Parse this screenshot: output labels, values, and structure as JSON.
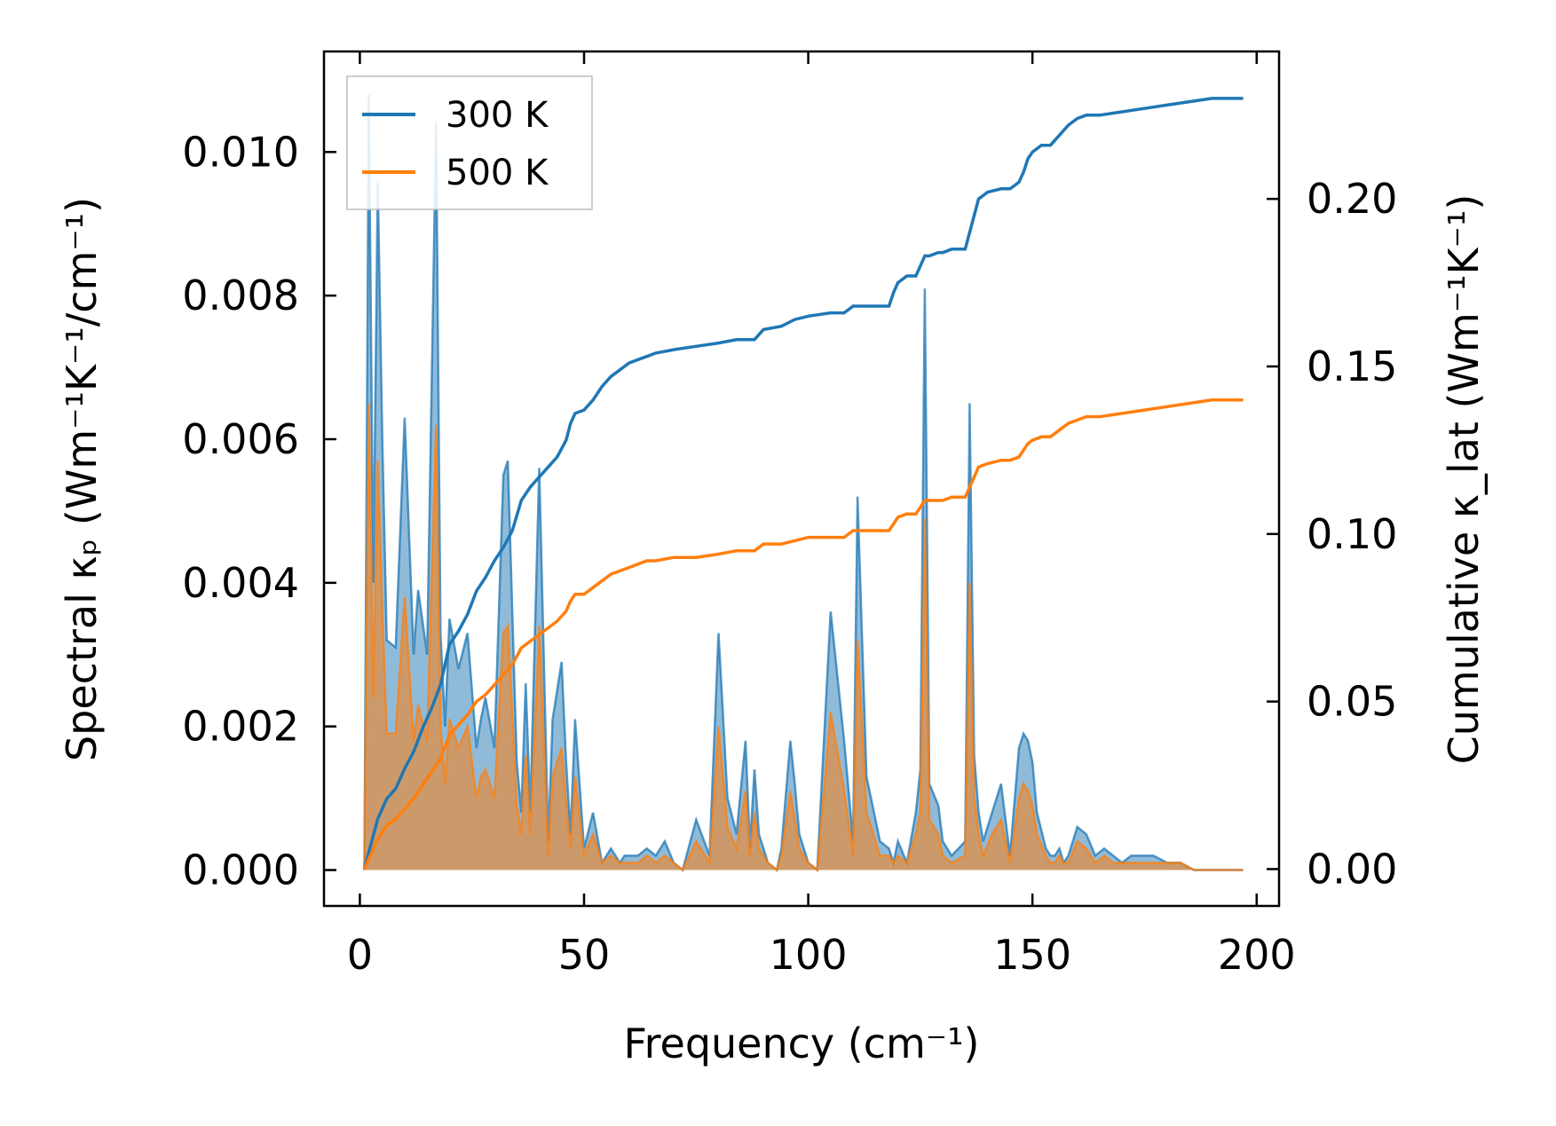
{
  "chart_data": {
    "type": "area+line",
    "xlabel": "Frequency (cm⁻¹)",
    "ylabel_left": "Spectral κₚ (Wm⁻¹K⁻¹/cm⁻¹)",
    "ylabel_right": "Cumulative κ_lat (Wm⁻¹K⁻¹)",
    "xlim": [
      -8,
      205
    ],
    "ylim_left": [
      -0.0005,
      0.0114
    ],
    "ylim_right": [
      -0.011,
      0.244
    ],
    "x_ticks": [
      0,
      50,
      100,
      150,
      200
    ],
    "x_tick_labels": [
      "0",
      "50",
      "100",
      "150",
      "200"
    ],
    "y_left_ticks": [
      0.0,
      0.002,
      0.004,
      0.006,
      0.008,
      0.01
    ],
    "y_left_tick_labels": [
      "0.000",
      "0.002",
      "0.004",
      "0.006",
      "0.008",
      "0.010"
    ],
    "y_right_ticks": [
      0.0,
      0.05,
      0.1,
      0.15,
      0.2
    ],
    "y_right_tick_labels": [
      "0.00",
      "0.05",
      "0.10",
      "0.15",
      "0.20"
    ],
    "legend": {
      "position": "top-left",
      "entries": [
        {
          "label": "300 K",
          "color": "#1f77b4"
        },
        {
          "label": "500 K",
          "color": "#ff7f0e"
        }
      ]
    },
    "spectral_x": [
      1,
      2,
      3,
      4,
      5,
      6,
      8,
      10,
      12,
      13,
      15,
      17,
      18,
      19,
      20,
      22,
      24,
      26,
      27,
      28,
      30,
      32,
      33,
      35,
      36,
      37,
      38,
      40,
      42,
      43,
      45,
      46,
      47,
      48,
      50,
      52,
      54,
      56,
      58,
      59,
      60,
      62,
      64,
      66,
      68,
      70,
      72,
      75,
      78,
      80,
      82,
      84,
      86,
      87,
      88,
      89,
      90,
      91,
      93,
      94,
      96,
      97,
      98,
      100,
      102,
      105,
      108,
      110,
      111,
      113,
      116,
      118,
      119,
      120,
      122,
      124,
      125,
      126,
      127,
      129,
      130,
      132,
      135,
      136,
      137,
      138,
      139,
      141,
      143,
      145,
      147,
      148,
      149,
      150,
      151,
      153,
      154,
      155,
      156,
      157,
      158,
      160,
      162,
      164,
      166,
      168,
      170,
      172,
      173,
      175,
      177,
      180,
      183,
      186,
      190,
      195,
      197
    ],
    "series": [
      {
        "name": "300 K",
        "color": "#1f77b4",
        "spectral": [
          0.0,
          0.0108,
          0.004,
          0.0096,
          0.006,
          0.0032,
          0.0031,
          0.0063,
          0.003,
          0.0039,
          0.003,
          0.0104,
          0.0033,
          0.002,
          0.0035,
          0.0028,
          0.0033,
          0.0017,
          0.0021,
          0.0024,
          0.0017,
          0.0055,
          0.0057,
          0.0015,
          0.0008,
          0.0026,
          0.0008,
          0.0056,
          0.0004,
          0.0021,
          0.0029,
          0.0015,
          0.0005,
          0.0021,
          0.0003,
          0.0008,
          0.0001,
          0.0003,
          0.0001,
          0.0002,
          0.0002,
          0.0002,
          0.0003,
          0.0002,
          0.0004,
          0.0001,
          0.0,
          0.0007,
          0.0002,
          0.0033,
          0.001,
          0.0005,
          0.0018,
          0.0003,
          0.0014,
          0.0005,
          0.0003,
          0.0001,
          0.0,
          0.0003,
          0.0018,
          0.0012,
          0.0005,
          0.0001,
          0.0,
          0.0036,
          0.0018,
          0.0004,
          0.0052,
          0.0013,
          0.0004,
          0.0003,
          0.0001,
          0.0004,
          0.0001,
          0.0008,
          0.0014,
          0.0081,
          0.0012,
          0.0009,
          0.0004,
          0.0002,
          0.0004,
          0.0065,
          0.0016,
          0.0008,
          0.0004,
          0.0008,
          0.0012,
          0.0002,
          0.0017,
          0.0019,
          0.0018,
          0.0015,
          0.0008,
          0.0003,
          0.0002,
          0.0002,
          0.0003,
          0.0001,
          0.0002,
          0.0006,
          0.0005,
          0.0002,
          0.0003,
          0.0002,
          0.0001,
          0.0002,
          0.0002,
          0.0002,
          0.0002,
          0.0001,
          0.0001,
          0.0,
          0.0,
          0.0,
          0.0
        ],
        "cumulative_x": [
          1,
          2,
          3,
          4,
          5,
          6,
          8,
          10,
          12,
          14,
          16,
          18,
          20,
          22,
          24,
          26,
          28,
          30,
          32,
          34,
          36,
          38,
          40,
          42,
          44,
          46,
          47,
          48,
          50,
          52,
          54,
          56,
          58,
          60,
          62,
          64,
          66,
          70,
          75,
          80,
          84,
          86,
          88,
          90,
          94,
          97,
          100,
          105,
          108,
          110,
          116,
          118,
          119,
          120,
          122,
          124,
          125,
          126,
          127,
          129,
          130,
          132,
          135,
          136,
          137,
          138,
          140,
          143,
          145,
          147,
          148,
          149,
          150,
          152,
          154,
          156,
          158,
          160,
          162,
          165,
          170,
          175,
          180,
          185,
          190,
          197
        ],
        "cumulative": [
          0.0,
          0.005,
          0.01,
          0.015,
          0.018,
          0.021,
          0.024,
          0.03,
          0.035,
          0.042,
          0.048,
          0.055,
          0.067,
          0.071,
          0.076,
          0.083,
          0.087,
          0.092,
          0.096,
          0.101,
          0.11,
          0.114,
          0.117,
          0.12,
          0.123,
          0.128,
          0.133,
          0.136,
          0.137,
          0.14,
          0.144,
          0.147,
          0.149,
          0.151,
          0.152,
          0.153,
          0.154,
          0.155,
          0.156,
          0.157,
          0.158,
          0.158,
          0.158,
          0.161,
          0.162,
          0.164,
          0.165,
          0.166,
          0.166,
          0.168,
          0.168,
          0.168,
          0.172,
          0.175,
          0.177,
          0.177,
          0.18,
          0.183,
          0.183,
          0.184,
          0.184,
          0.185,
          0.185,
          0.19,
          0.195,
          0.2,
          0.202,
          0.203,
          0.203,
          0.205,
          0.208,
          0.212,
          0.214,
          0.216,
          0.216,
          0.219,
          0.222,
          0.224,
          0.225,
          0.225,
          0.226,
          0.227,
          0.228,
          0.229,
          0.23,
          0.23
        ]
      },
      {
        "name": "500 K",
        "color": "#ff7f0e",
        "spectral": [
          0.0,
          0.0065,
          0.0024,
          0.0057,
          0.0036,
          0.0019,
          0.0019,
          0.0038,
          0.0018,
          0.0023,
          0.0018,
          0.0062,
          0.002,
          0.0012,
          0.0021,
          0.0017,
          0.002,
          0.001,
          0.0013,
          0.0014,
          0.001,
          0.0033,
          0.0034,
          0.0009,
          0.0005,
          0.0016,
          0.0005,
          0.0034,
          0.0002,
          0.0013,
          0.0017,
          0.0009,
          0.0003,
          0.0013,
          0.0002,
          0.0005,
          0.0001,
          0.0002,
          0.0001,
          0.0001,
          0.0001,
          0.0001,
          0.0002,
          0.0001,
          0.0002,
          0.0001,
          0.0,
          0.0004,
          0.0001,
          0.002,
          0.0006,
          0.0003,
          0.0011,
          0.0002,
          0.0008,
          0.0003,
          0.0002,
          0.0001,
          0.0,
          0.0002,
          0.0011,
          0.0007,
          0.0003,
          0.0001,
          0.0,
          0.0022,
          0.0011,
          0.0002,
          0.0032,
          0.0008,
          0.0002,
          0.0002,
          0.0001,
          0.0002,
          0.0001,
          0.0005,
          0.0008,
          0.0049,
          0.0007,
          0.0005,
          0.0002,
          0.0001,
          0.0002,
          0.004,
          0.001,
          0.0005,
          0.0002,
          0.0005,
          0.0007,
          0.0001,
          0.001,
          0.0012,
          0.0011,
          0.0009,
          0.0005,
          0.0002,
          0.0001,
          0.0001,
          0.0002,
          0.0001,
          0.0001,
          0.0004,
          0.0003,
          0.0001,
          0.0002,
          0.0001,
          0.0001,
          0.0001,
          0.0001,
          0.0001,
          0.0001,
          0.0001,
          0.0001,
          0.0,
          0.0,
          0.0,
          0.0
        ],
        "cumulative_x": [
          1,
          2,
          3,
          4,
          5,
          6,
          8,
          10,
          12,
          14,
          16,
          18,
          20,
          22,
          24,
          26,
          28,
          30,
          32,
          34,
          36,
          38,
          40,
          42,
          44,
          46,
          47,
          48,
          50,
          52,
          54,
          56,
          58,
          60,
          62,
          64,
          66,
          70,
          75,
          80,
          84,
          86,
          88,
          90,
          94,
          97,
          100,
          105,
          108,
          110,
          116,
          118,
          119,
          120,
          122,
          124,
          125,
          126,
          127,
          129,
          130,
          132,
          135,
          136,
          137,
          138,
          140,
          143,
          145,
          147,
          148,
          149,
          150,
          152,
          154,
          156,
          158,
          160,
          162,
          165,
          170,
          175,
          180,
          185,
          190,
          197
        ],
        "cumulative": [
          0.0,
          0.003,
          0.006,
          0.009,
          0.011,
          0.013,
          0.015,
          0.018,
          0.021,
          0.025,
          0.029,
          0.033,
          0.04,
          0.043,
          0.046,
          0.05,
          0.052,
          0.055,
          0.058,
          0.061,
          0.066,
          0.068,
          0.07,
          0.072,
          0.074,
          0.077,
          0.08,
          0.082,
          0.082,
          0.084,
          0.086,
          0.088,
          0.089,
          0.09,
          0.091,
          0.092,
          0.092,
          0.093,
          0.093,
          0.094,
          0.095,
          0.095,
          0.095,
          0.097,
          0.097,
          0.098,
          0.099,
          0.099,
          0.099,
          0.101,
          0.101,
          0.101,
          0.103,
          0.105,
          0.106,
          0.106,
          0.108,
          0.11,
          0.11,
          0.11,
          0.11,
          0.111,
          0.111,
          0.114,
          0.117,
          0.12,
          0.121,
          0.122,
          0.122,
          0.123,
          0.125,
          0.127,
          0.128,
          0.129,
          0.129,
          0.131,
          0.133,
          0.134,
          0.135,
          0.135,
          0.136,
          0.137,
          0.138,
          0.139,
          0.14,
          0.14
        ]
      }
    ]
  }
}
